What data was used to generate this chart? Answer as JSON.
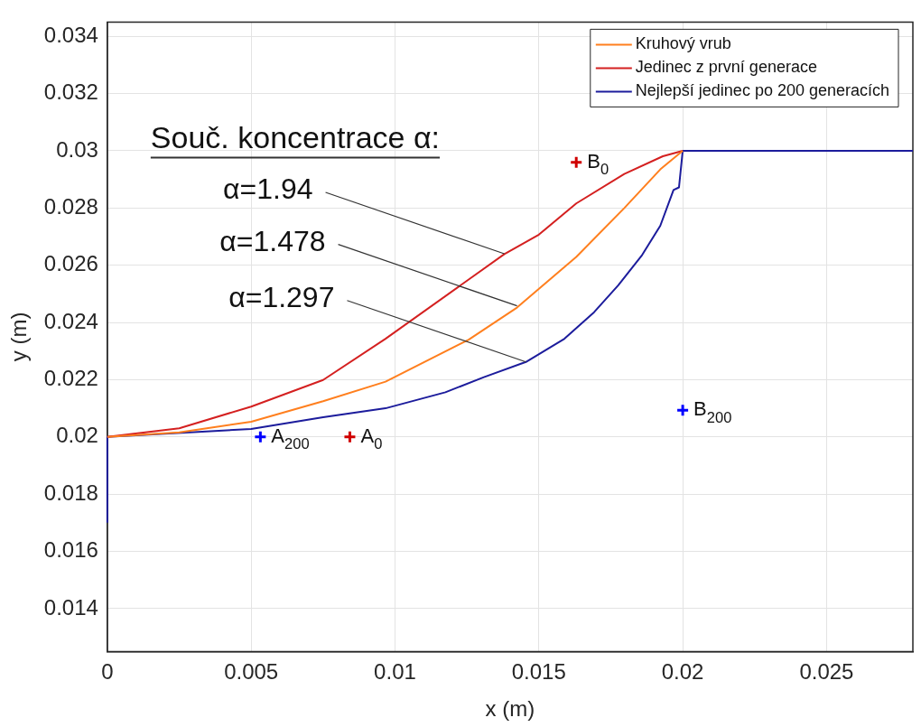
{
  "chart_data": {
    "type": "line",
    "xlabel": "x (m)",
    "ylabel": "y (m)",
    "xlim": [
      0,
      0.028
    ],
    "xticks": [
      0,
      0.005,
      0.01,
      0.015,
      0.02,
      0.025
    ],
    "ylim": [
      0.0125,
      0.0345
    ],
    "yticks": [
      0.014,
      0.016,
      0.018,
      0.02,
      0.022,
      0.024,
      0.026,
      0.028,
      0.03,
      0.032,
      0.034
    ],
    "grid": true,
    "legend": "top right",
    "marker": "none",
    "line_style": "solid",
    "series": [
      {
        "name": "Kruhový vrub",
        "color": "#ff7f1e",
        "x": [
          0,
          0.0025,
          0.005,
          0.0075,
          0.00967,
          0.01256,
          0.01424,
          0.0163,
          0.01797,
          0.01922,
          0.02
        ],
        "values": [
          0.02,
          0.02016,
          0.02053,
          0.02125,
          0.02193,
          0.0234,
          0.02452,
          0.02629,
          0.028,
          0.02935,
          0.03
        ]
      },
      {
        "name": "Jedinec z první generace",
        "color": "#d42020",
        "x": [
          0,
          0.0025,
          0.005,
          0.0075,
          0.00967,
          0.0138,
          0.015,
          0.0163,
          0.01797,
          0.01931,
          0.02
        ],
        "values": [
          0.02,
          0.0203,
          0.02106,
          0.02199,
          0.02343,
          0.02639,
          0.02707,
          0.02816,
          0.02919,
          0.02981,
          0.03
        ]
      },
      {
        "name": "Nejlepší jedinec po 200 generacích",
        "color": "#1c1c9c",
        "x": [
          0,
          0,
          0.005,
          0.0075,
          0.00967,
          0.01175,
          0.01309,
          0.01455,
          0.01589,
          0.01692,
          0.01776,
          0.01859,
          0.01922,
          0.01968,
          0.01987,
          0.02,
          0.028
        ],
        "values": [
          0.017,
          0.02,
          0.02028,
          0.02069,
          0.021,
          0.02156,
          0.02209,
          0.02262,
          0.02343,
          0.02436,
          0.0253,
          0.02636,
          0.02738,
          0.02863,
          0.02872,
          0.03,
          0.03
        ]
      },
      {
        "type": "scatter",
        "marker": "cross",
        "color": "#0000ff",
        "x": [
          0.00532,
          0.02
        ],
        "values": [
          0.02,
          0.02093
        ]
      },
      {
        "type": "scatter",
        "marker": "cross",
        "color": "#d00000",
        "x": [
          0.00843,
          0.0163
        ],
        "values": [
          0.02,
          0.0296
        ]
      }
    ],
    "annotations": [
      "Souč. koncentrace α:",
      {
        "text": "α=1.94",
        "x": 0.0138,
        "y": 0.0264
      },
      {
        "text": "α=1.478",
        "x": 0.01424,
        "y": 0.02458
      },
      {
        "text": "α=1.297",
        "x": 0.01455,
        "y": 0.02262
      },
      {
        "text": "A$_{200}$",
        "x": 0.00532,
        "y": 0.02
      },
      {
        "text": "A$_{0}$",
        "x": 0.00843,
        "y": 0.02
      },
      {
        "text": "B$_{0}$",
        "x": 0.0163,
        "y": 0.0296
      },
      {
        "text": "B$_{200}$",
        "x": 0.02,
        "y": 0.02093
      }
    ]
  }
}
